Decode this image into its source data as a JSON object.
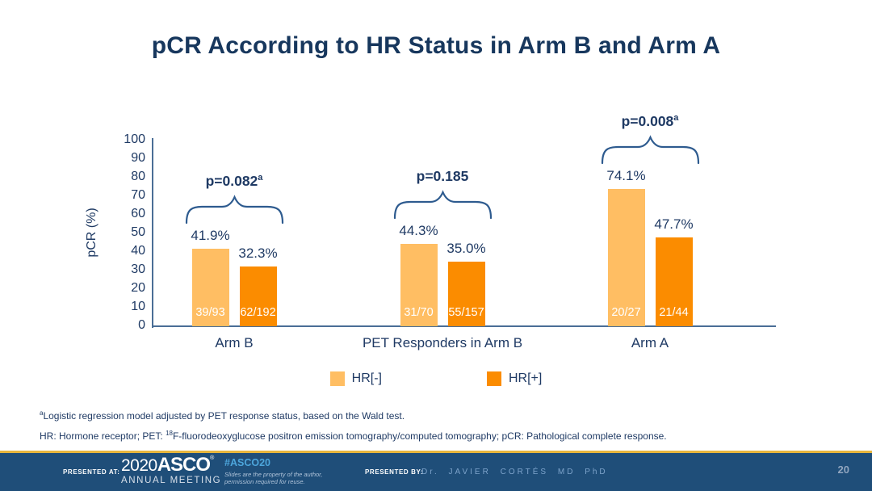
{
  "slide": {
    "title": "pCR According to HR Status in Arm B and Arm A"
  },
  "chart_data": {
    "type": "bar",
    "title": "pCR According to HR Status in Arm B and Arm A",
    "xlabel": "",
    "ylabel": "pCR (%)",
    "ylim": [
      0,
      100
    ],
    "yticks": [
      0,
      10,
      20,
      30,
      40,
      50,
      60,
      70,
      80,
      90,
      100
    ],
    "grid": false,
    "legend_position": "bottom",
    "categories": [
      "Arm B",
      "PET Responders in Arm B",
      "Arm A"
    ],
    "series": [
      {
        "name": "HR[-]",
        "color": "#FFBE63",
        "values": [
          41.9,
          44.3,
          74.1
        ],
        "value_labels": [
          "41.9%",
          "44.3%",
          "74.1%"
        ],
        "fraction_labels": [
          "39/93",
          "31/70",
          "20/27"
        ]
      },
      {
        "name": "HR[+]",
        "color": "#FB8C00",
        "values": [
          32.3,
          35.0,
          47.7
        ],
        "value_labels": [
          "32.3%",
          "35.0%",
          "47.7%"
        ],
        "fraction_labels": [
          "62/192",
          "55/157",
          "21/44"
        ]
      }
    ],
    "p_values": [
      {
        "text": "p=0.082",
        "sup": "a"
      },
      {
        "text": "p=0.185",
        "sup": ""
      },
      {
        "text": "p=0.008",
        "sup": "a"
      }
    ]
  },
  "legend": {
    "items": [
      {
        "label": "HR[-]",
        "color": "#FFBE63"
      },
      {
        "label": "HR[+]",
        "color": "#FB8C00"
      }
    ]
  },
  "footnotes": {
    "line1_sup": "a",
    "line1": "Logistic regression model adjusted by PET response status, based on the Wald test.",
    "line2_part1": "HR: Hormone receptor; PET: ",
    "line2_sup": "18",
    "line2_part2": "F-fluorodeoxyglucose positron emission tomography/computed tomography; pCR: Pathological complete response."
  },
  "footer": {
    "presented_at_label": "PRESENTED AT:",
    "logo_year": "2020",
    "logo_name": "ASCO",
    "logo_mark": "®",
    "logo_subtitle": "ANNUAL MEETING",
    "hashtag": "#ASCO20",
    "disclaimer_line1": "Slides are the property of the author,",
    "disclaimer_line2": "permission required for reuse.",
    "presented_by_label": "PRESENTED BY:",
    "presenter": "Dr. JAVIER CORTÉS MD PhD",
    "page_number": "20"
  },
  "colors": {
    "title_navy": "#17375D",
    "text_navy": "#1F3A64",
    "axis": "#4A6E96",
    "brace": "#2E5B8F",
    "hr_neg_orange": "#FFBE63",
    "hr_pos_orange": "#FB8C00",
    "footer_bg": "#1F4E79",
    "footer_gold_line": "#E7B63E",
    "hashtag_blue": "#4DA6DC",
    "presenter_blue": "#7DA3CB",
    "page_number_blue": "#91A6BF"
  }
}
